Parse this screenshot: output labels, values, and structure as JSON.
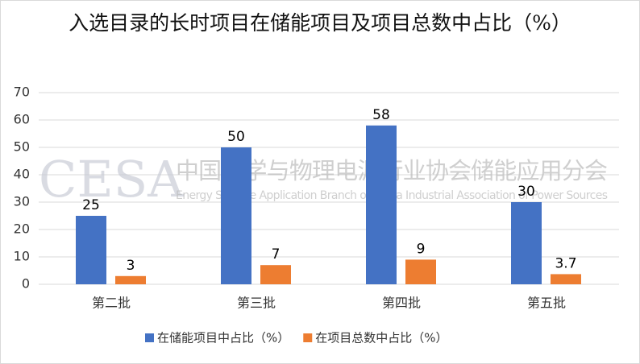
{
  "chart_data": {
    "type": "bar",
    "title": "入选目录的长时项目在储能项目及项目总数中占比（%）",
    "categories": [
      "第二批",
      "第三批",
      "第四批",
      "第五批"
    ],
    "series": [
      {
        "name": "在储能项目中占比（%）",
        "color": "#4472c4",
        "values": [
          25,
          50,
          58,
          30
        ]
      },
      {
        "name": "在项目总数中占比（%）",
        "color": "#ed7d31",
        "values": [
          3,
          7,
          9,
          3.7
        ]
      }
    ],
    "ylim": [
      0,
      70
    ],
    "yticks": [
      0,
      10,
      20,
      30,
      40,
      50,
      60,
      70
    ],
    "grid": true,
    "legend": "bottom",
    "watermark": {
      "logo": "CESA",
      "text": "中国化学与物理电源行业协会储能应用分会",
      "subtitle": "Energy Storage Application Branch of China Industrial Association of Power Sources"
    }
  }
}
